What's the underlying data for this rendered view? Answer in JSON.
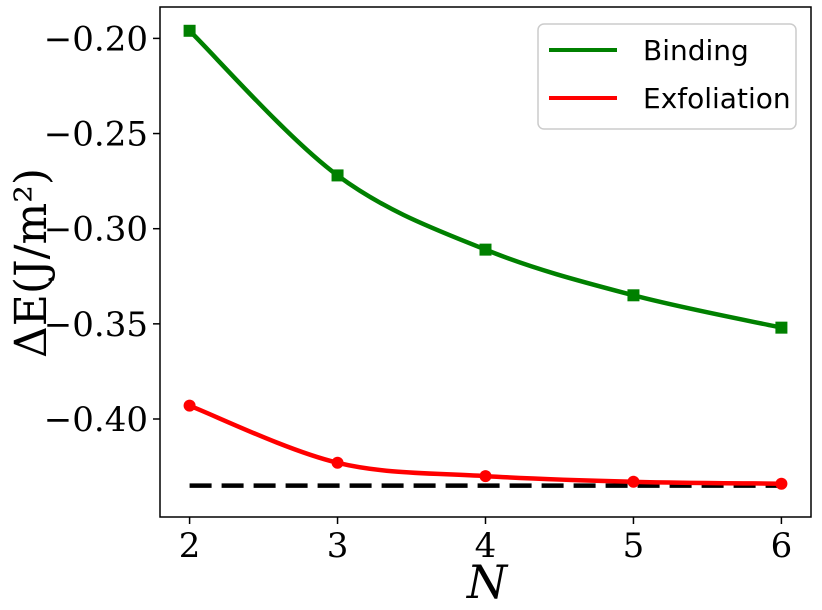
{
  "chart_data": {
    "type": "line",
    "xlabel": "N",
    "ylabel": "ΔE(J/m²)",
    "xlim": [
      1.8,
      6.2
    ],
    "ylim": [
      -0.4515,
      -0.1835
    ],
    "x_ticks": [
      2,
      3,
      4,
      5,
      6
    ],
    "x_tick_labels": [
      "2",
      "3",
      "4",
      "5",
      "6"
    ],
    "y_ticks": [
      -0.2,
      -0.25,
      -0.3,
      -0.35,
      -0.4
    ],
    "y_tick_labels": [
      "−0.20",
      "−0.25",
      "−0.30",
      "−0.35",
      "−0.40"
    ],
    "grid": false,
    "legend_position": "top-right",
    "series": [
      {
        "name": "Binding",
        "color": "#008000",
        "marker": "square",
        "x": [
          2,
          3,
          4,
          5,
          6
        ],
        "values": [
          -0.196,
          -0.272,
          -0.311,
          -0.335,
          -0.352
        ]
      },
      {
        "name": "Exfoliation",
        "color": "#ff0000",
        "marker": "circle",
        "x": [
          2,
          3,
          4,
          5,
          6
        ],
        "values": [
          -0.393,
          -0.423,
          -0.43,
          -0.433,
          -0.434
        ]
      }
    ],
    "reference_line": {
      "style": "dashed",
      "color": "#000000",
      "y": -0.435,
      "x_range": [
        2,
        6
      ]
    }
  }
}
